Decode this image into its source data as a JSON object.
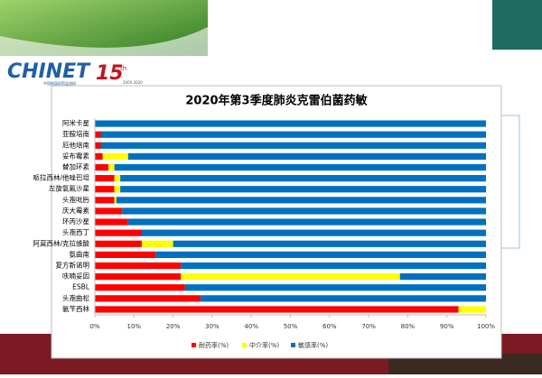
{
  "logo": {
    "brand": "CHINET",
    "subtitle": "中国细菌耐药监测网",
    "anniversary": "15",
    "suffix": "th",
    "years": "2005-2020"
  },
  "chart_data": {
    "type": "bar",
    "orientation": "horizontal",
    "stacked": true,
    "title": "2020年第3季度肺炎克雷伯菌药敏",
    "categories": [
      "阿米卡星",
      "亚胺培南",
      "厄他培南",
      "妥布霉素",
      "替加环素",
      "哌拉西林/他唑巴坦",
      "左旋氧氟沙星",
      "头孢吡肟",
      "庆大霉素",
      "环丙沙星",
      "头孢西丁",
      "阿莫西林/克拉维酸",
      "氨曲南",
      "复方新诺明",
      "呋喃妥因",
      "ESBL",
      "头孢曲松",
      "氨苄西林"
    ],
    "series": [
      {
        "name": "耐药率(%)",
        "color": "#ff0000",
        "values": [
          0,
          1.5,
          1.5,
          2,
          3.5,
          5,
          5,
          5,
          7,
          8.5,
          12,
          12,
          15.5,
          22,
          22,
          23,
          27,
          93
        ]
      },
      {
        "name": "中介率(%)",
        "color": "#ffff00",
        "values": [
          0,
          0,
          0,
          6.5,
          1.5,
          1.5,
          1.5,
          0.5,
          0,
          0,
          0,
          8,
          0,
          0,
          56,
          0,
          0,
          7
        ]
      },
      {
        "name": "敏感率(%)",
        "color": "#0070c0",
        "values": [
          100,
          98.5,
          98.5,
          91.5,
          95,
          93.5,
          93.5,
          94.5,
          93,
          91.5,
          88,
          80,
          84.5,
          78,
          22,
          77,
          73,
          0
        ]
      }
    ],
    "xlim": [
      0,
      100
    ],
    "xticks": [
      {
        "value": 0,
        "label": "0%"
      },
      {
        "value": 10,
        "label": "10%"
      },
      {
        "value": 20,
        "label": "20%"
      },
      {
        "value": 30,
        "label": "30%"
      },
      {
        "value": 40,
        "label": "40%"
      },
      {
        "value": 50,
        "label": "50%"
      },
      {
        "value": 60,
        "label": "60%"
      },
      {
        "value": 70,
        "label": "70%"
      },
      {
        "value": 80,
        "label": "80%"
      },
      {
        "value": 90,
        "label": "90%"
      },
      {
        "value": 100,
        "label": "100%"
      }
    ],
    "legend": "bottom"
  }
}
